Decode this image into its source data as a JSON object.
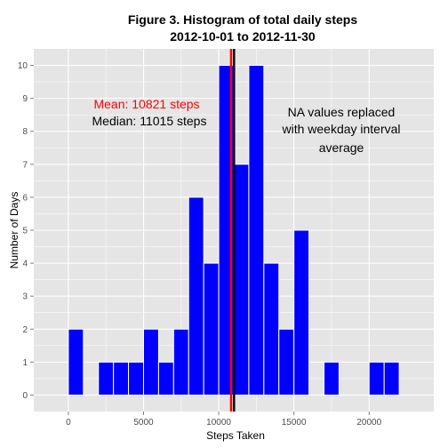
{
  "chart_data": {
    "type": "bar",
    "title": "Figure 3. Histogram of total daily steps",
    "subtitle": "2012-10-01 to 2012-11-30",
    "xlabel": "Steps Taken",
    "ylabel": "Number of Days",
    "xlim": [
      -2300,
      24300
    ],
    "ylim": [
      -0.5,
      10.5
    ],
    "x_ticks": [
      0,
      5000,
      10000,
      15000,
      20000
    ],
    "y_ticks": [
      0,
      1,
      2,
      3,
      4,
      5,
      6,
      7,
      8,
      9,
      10
    ],
    "grid": true,
    "bin_width": 1000,
    "bins": [
      {
        "x0": 0,
        "x1": 1000,
        "count": 2
      },
      {
        "x0": 1000,
        "x1": 2000,
        "count": 0
      },
      {
        "x0": 2000,
        "x1": 3000,
        "count": 1
      },
      {
        "x0": 3000,
        "x1": 4000,
        "count": 1
      },
      {
        "x0": 4000,
        "x1": 5000,
        "count": 1
      },
      {
        "x0": 5000,
        "x1": 6000,
        "count": 2
      },
      {
        "x0": 6000,
        "x1": 7000,
        "count": 1
      },
      {
        "x0": 7000,
        "x1": 8000,
        "count": 2
      },
      {
        "x0": 8000,
        "x1": 9000,
        "count": 6
      },
      {
        "x0": 9000,
        "x1": 10000,
        "count": 4
      },
      {
        "x0": 10000,
        "x1": 11000,
        "count": 10
      },
      {
        "x0": 11000,
        "x1": 12000,
        "count": 7
      },
      {
        "x0": 12000,
        "x1": 13000,
        "count": 10
      },
      {
        "x0": 13000,
        "x1": 14000,
        "count": 4
      },
      {
        "x0": 14000,
        "x1": 15000,
        "count": 2
      },
      {
        "x0": 15000,
        "x1": 16000,
        "count": 5
      },
      {
        "x0": 16000,
        "x1": 17000,
        "count": 0
      },
      {
        "x0": 17000,
        "x1": 18000,
        "count": 1
      },
      {
        "x0": 18000,
        "x1": 19000,
        "count": 0
      },
      {
        "x0": 19000,
        "x1": 20000,
        "count": 0
      },
      {
        "x0": 20000,
        "x1": 21000,
        "count": 1
      },
      {
        "x0": 21000,
        "x1": 22000,
        "count": 1
      }
    ],
    "vlines": [
      {
        "name": "mean",
        "x": 10821,
        "color": "#ff0000"
      },
      {
        "name": "median",
        "x": 11015,
        "color": "#000000"
      }
    ],
    "annotations": [
      {
        "name": "mean",
        "text": "Mean: 10821  steps",
        "color": "#ff0000"
      },
      {
        "name": "median",
        "text": "Median: 11015  steps",
        "color": "#000000"
      },
      {
        "name": "note",
        "lines": [
          "NA values replaced",
          "with weekday interval",
          "average"
        ],
        "color": "#000000"
      }
    ],
    "colors": {
      "bar_fill": "#0000ff",
      "bar_stroke": "#ffffff",
      "panel": "#e5e5e5",
      "grid": "#ffffff"
    }
  }
}
